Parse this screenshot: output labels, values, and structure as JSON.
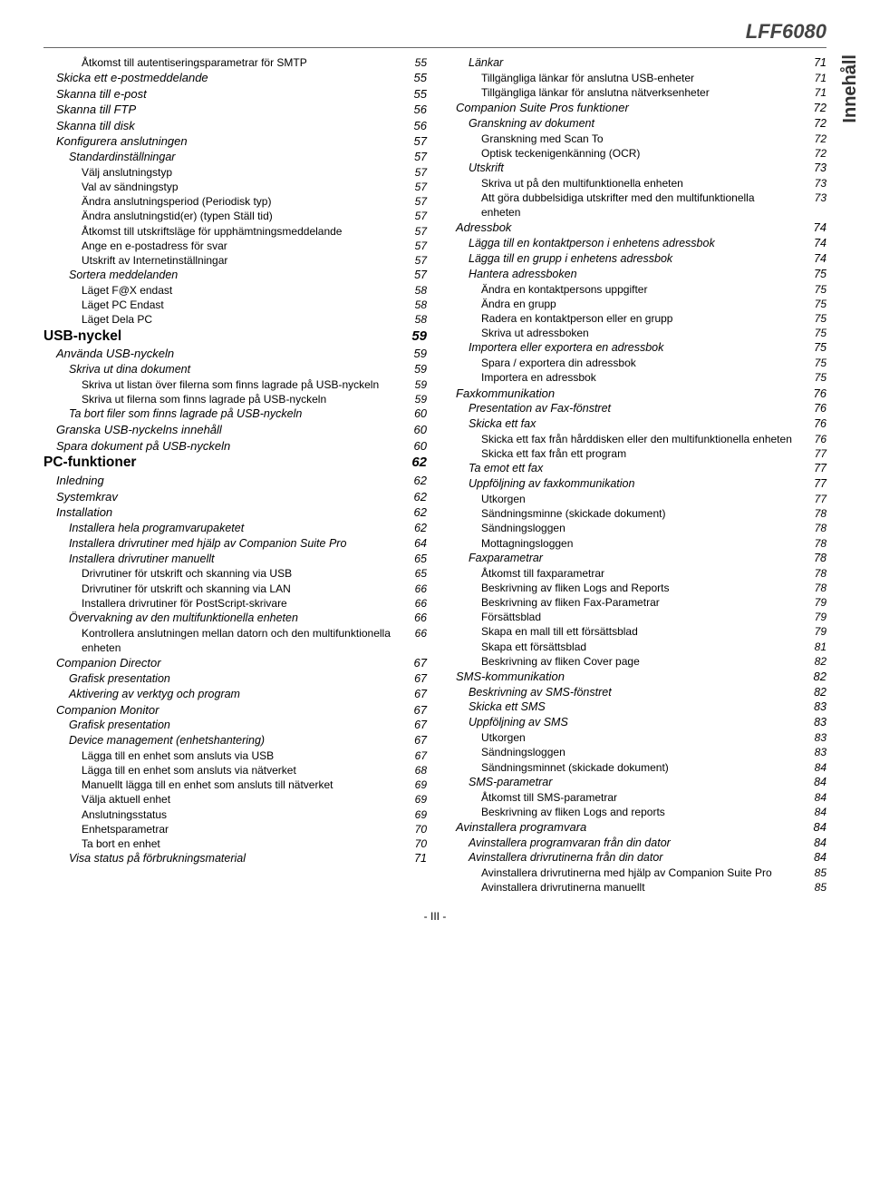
{
  "header_model": "LFF6080",
  "side_tab": "Innehåll",
  "footer": "- III -",
  "left": [
    {
      "lvl": 3,
      "t": "Åtkomst till autentiseringsparametrar för SMTP",
      "p": "55"
    },
    {
      "lvl": 1,
      "t": "Skicka ett e-postmeddelande",
      "p": "55"
    },
    {
      "lvl": 1,
      "t": "Skanna till e-post",
      "p": "55"
    },
    {
      "lvl": 1,
      "t": "Skanna till FTP",
      "p": "56"
    },
    {
      "lvl": 1,
      "t": "Skanna till disk",
      "p": "56"
    },
    {
      "lvl": 1,
      "t": "Konfigurera anslutningen",
      "p": "57"
    },
    {
      "lvl": 2,
      "t": "Standardinställningar",
      "p": "57"
    },
    {
      "lvl": 3,
      "t": "Välj anslutningstyp",
      "p": "57"
    },
    {
      "lvl": 3,
      "t": "Val av sändningstyp",
      "p": "57"
    },
    {
      "lvl": 3,
      "t": "Ändra anslutningsperiod (Periodisk typ)",
      "p": "57"
    },
    {
      "lvl": 3,
      "t": "Ändra anslutningstid(er) (typen Ställ tid)",
      "p": "57"
    },
    {
      "lvl": 3,
      "t": "Åtkomst till utskriftsläge för upphämtningsmeddelande",
      "p": "57"
    },
    {
      "lvl": 3,
      "t": "Ange en e-postadress för svar",
      "p": "57"
    },
    {
      "lvl": 3,
      "t": "Utskrift av Internetinställningar",
      "p": "57"
    },
    {
      "lvl": 2,
      "t": "Sortera meddelanden",
      "p": "57"
    },
    {
      "lvl": 3,
      "t": "Läget F@X endast",
      "p": "58"
    },
    {
      "lvl": 3,
      "t": "Läget PC Endast",
      "p": "58"
    },
    {
      "lvl": 3,
      "t": "Läget Dela PC",
      "p": "58"
    },
    {
      "lvl": 0,
      "t": "USB-nyckel",
      "p": "59"
    },
    {
      "lvl": 1,
      "t": "Använda USB-nyckeln",
      "p": "59"
    },
    {
      "lvl": 2,
      "t": "Skriva ut dina dokument",
      "p": "59"
    },
    {
      "lvl": 3,
      "t": "Skriva ut listan över filerna som finns lagrade på USB-nyckeln",
      "p": "59"
    },
    {
      "lvl": 3,
      "t": "Skriva ut filerna som finns lagrade på USB-nyckeln",
      "p": "59"
    },
    {
      "lvl": 2,
      "t": "Ta bort filer som finns lagrade på USB-nyckeln",
      "p": "60"
    },
    {
      "lvl": 1,
      "t": "Granska USB-nyckelns innehåll",
      "p": "60"
    },
    {
      "lvl": 1,
      "t": "Spara dokument på USB-nyckeln",
      "p": "60"
    },
    {
      "lvl": 0,
      "t": "PC-funktioner",
      "p": "62"
    },
    {
      "lvl": 1,
      "t": "Inledning",
      "p": "62"
    },
    {
      "lvl": 1,
      "t": "Systemkrav",
      "p": "62"
    },
    {
      "lvl": 1,
      "t": "Installation",
      "p": "62"
    },
    {
      "lvl": 2,
      "t": "Installera hela programvarupaketet",
      "p": "62"
    },
    {
      "lvl": 2,
      "t": "Installera drivrutiner med hjälp av Companion Suite Pro",
      "p": "64"
    },
    {
      "lvl": 2,
      "t": "Installera drivrutiner manuellt",
      "p": "65"
    },
    {
      "lvl": 3,
      "t": "Drivrutiner för utskrift och skanning via USB",
      "p": "65"
    },
    {
      "lvl": 3,
      "t": "Drivrutiner för utskrift och skanning via LAN",
      "p": "66"
    },
    {
      "lvl": 3,
      "t": "Installera drivrutiner för PostScript-skrivare",
      "p": "66"
    },
    {
      "lvl": 2,
      "t": "Övervakning av den multifunktionella enheten",
      "p": "66"
    },
    {
      "lvl": 3,
      "t": "Kontrollera anslutningen mellan datorn och den multifunktionella enheten",
      "p": "66"
    },
    {
      "lvl": 1,
      "t": "Companion Director",
      "p": "67"
    },
    {
      "lvl": 2,
      "t": "Grafisk presentation",
      "p": "67"
    },
    {
      "lvl": 2,
      "t": "Aktivering av verktyg och program",
      "p": "67"
    },
    {
      "lvl": 1,
      "t": "Companion Monitor",
      "p": "67"
    },
    {
      "lvl": 2,
      "t": "Grafisk presentation",
      "p": "67"
    },
    {
      "lvl": 2,
      "t": "Device management (enhetshantering)",
      "p": "67"
    },
    {
      "lvl": 3,
      "t": "Lägga till en enhet som ansluts via USB",
      "p": "67"
    },
    {
      "lvl": 3,
      "t": "Lägga till en enhet som ansluts via nätverket",
      "p": "68"
    },
    {
      "lvl": 3,
      "t": "Manuellt lägga till en enhet som ansluts till nätverket",
      "p": "69"
    },
    {
      "lvl": 3,
      "t": "Välja aktuell enhet",
      "p": "69"
    },
    {
      "lvl": 3,
      "t": "Anslutningsstatus",
      "p": "69"
    },
    {
      "lvl": 3,
      "t": "Enhetsparametrar",
      "p": "70"
    },
    {
      "lvl": 3,
      "t": "Ta bort en enhet",
      "p": "70"
    },
    {
      "lvl": 2,
      "t": "Visa status på förbrukningsmaterial",
      "p": "71"
    }
  ],
  "right": [
    {
      "lvl": 2,
      "t": "Länkar",
      "p": "71"
    },
    {
      "lvl": 3,
      "t": "Tillgängliga länkar för anslutna USB-enheter",
      "p": "71"
    },
    {
      "lvl": 3,
      "t": "Tillgängliga länkar för anslutna nätverksenheter",
      "p": "71"
    },
    {
      "lvl": 1,
      "t": "Companion Suite Pros funktioner",
      "p": "72"
    },
    {
      "lvl": 2,
      "t": "Granskning av dokument",
      "p": "72"
    },
    {
      "lvl": 3,
      "t": "Granskning med Scan To",
      "p": "72"
    },
    {
      "lvl": 3,
      "t": "Optisk teckenigenkänning (OCR)",
      "p": "72"
    },
    {
      "lvl": 2,
      "t": "Utskrift",
      "p": "73"
    },
    {
      "lvl": 3,
      "t": "Skriva ut på den multifunktionella enheten",
      "p": "73"
    },
    {
      "lvl": 3,
      "t": "Att göra dubbelsidiga utskrifter med den multifunktionella enheten",
      "p": "73"
    },
    {
      "lvl": 1,
      "t": "Adressbok",
      "p": "74"
    },
    {
      "lvl": 2,
      "t": "Lägga till en kontaktperson i enhetens adressbok",
      "p": "74"
    },
    {
      "lvl": 2,
      "t": "Lägga till en grupp i enhetens adressbok",
      "p": "74"
    },
    {
      "lvl": 2,
      "t": "Hantera adressboken",
      "p": "75"
    },
    {
      "lvl": 3,
      "t": "Ändra en kontaktpersons uppgifter",
      "p": "75"
    },
    {
      "lvl": 3,
      "t": "Ändra en grupp",
      "p": "75"
    },
    {
      "lvl": 3,
      "t": "Radera en kontaktperson eller en grupp",
      "p": "75"
    },
    {
      "lvl": 3,
      "t": "Skriva ut adressboken",
      "p": "75"
    },
    {
      "lvl": 2,
      "t": "Importera eller exportera en adressbok",
      "p": "75"
    },
    {
      "lvl": 3,
      "t": "Spara / exportera din adressbok",
      "p": "75"
    },
    {
      "lvl": 3,
      "t": "Importera en adressbok",
      "p": "75"
    },
    {
      "lvl": 1,
      "t": "Faxkommunikation",
      "p": "76"
    },
    {
      "lvl": 2,
      "t": "Presentation av Fax-fönstret",
      "p": "76"
    },
    {
      "lvl": 2,
      "t": "Skicka ett fax",
      "p": "76"
    },
    {
      "lvl": 3,
      "t": "Skicka ett fax från hårddisken eller den multifunktionella enheten",
      "p": "76"
    },
    {
      "lvl": 3,
      "t": "Skicka ett fax från ett program",
      "p": "77"
    },
    {
      "lvl": 2,
      "t": "Ta emot ett fax",
      "p": "77"
    },
    {
      "lvl": 2,
      "t": "Uppföljning av faxkommunikation",
      "p": "77"
    },
    {
      "lvl": 3,
      "t": "Utkorgen",
      "p": "77"
    },
    {
      "lvl": 3,
      "t": "Sändningsminne (skickade dokument)",
      "p": "78"
    },
    {
      "lvl": 3,
      "t": "Sändningsloggen",
      "p": "78"
    },
    {
      "lvl": 3,
      "t": "Mottagningsloggen",
      "p": "78"
    },
    {
      "lvl": 2,
      "t": "Faxparametrar",
      "p": "78"
    },
    {
      "lvl": 3,
      "t": "Åtkomst till faxparametrar",
      "p": "78"
    },
    {
      "lvl": 3,
      "t": "Beskrivning av fliken Logs and Reports",
      "p": "78"
    },
    {
      "lvl": 3,
      "t": "Beskrivning av fliken Fax-Parametrar",
      "p": "79"
    },
    {
      "lvl": 3,
      "t": "Försättsblad",
      "p": "79"
    },
    {
      "lvl": 3,
      "t": "Skapa en mall till ett försättsblad",
      "p": "79"
    },
    {
      "lvl": 3,
      "t": "Skapa ett försättsblad",
      "p": "81"
    },
    {
      "lvl": 3,
      "t": "Beskrivning av fliken Cover page",
      "p": "82"
    },
    {
      "lvl": 1,
      "t": "SMS-kommunikation",
      "p": "82"
    },
    {
      "lvl": 2,
      "t": "Beskrivning av SMS-fönstret",
      "p": "82"
    },
    {
      "lvl": 2,
      "t": "Skicka ett SMS",
      "p": "83"
    },
    {
      "lvl": 2,
      "t": "Uppföljning av SMS",
      "p": "83"
    },
    {
      "lvl": 3,
      "t": "Utkorgen",
      "p": "83"
    },
    {
      "lvl": 3,
      "t": "Sändningsloggen",
      "p": "83"
    },
    {
      "lvl": 3,
      "t": "Sändningsminnet (skickade dokument)",
      "p": "84"
    },
    {
      "lvl": 2,
      "t": "SMS-parametrar",
      "p": "84"
    },
    {
      "lvl": 3,
      "t": "Åtkomst till SMS-parametrar",
      "p": "84"
    },
    {
      "lvl": 3,
      "t": "Beskrivning av fliken Logs and reports",
      "p": "84"
    },
    {
      "lvl": 1,
      "t": "Avinstallera programvara",
      "p": "84"
    },
    {
      "lvl": 2,
      "t": "Avinstallera programvaran från din dator",
      "p": "84"
    },
    {
      "lvl": 2,
      "t": "Avinstallera drivrutinerna från din dator",
      "p": "84"
    },
    {
      "lvl": 3,
      "t": "Avinstallera drivrutinerna med hjälp av Companion Suite Pro",
      "p": "85"
    },
    {
      "lvl": 3,
      "t": "Avinstallera drivrutinerna manuellt",
      "p": "85"
    }
  ]
}
